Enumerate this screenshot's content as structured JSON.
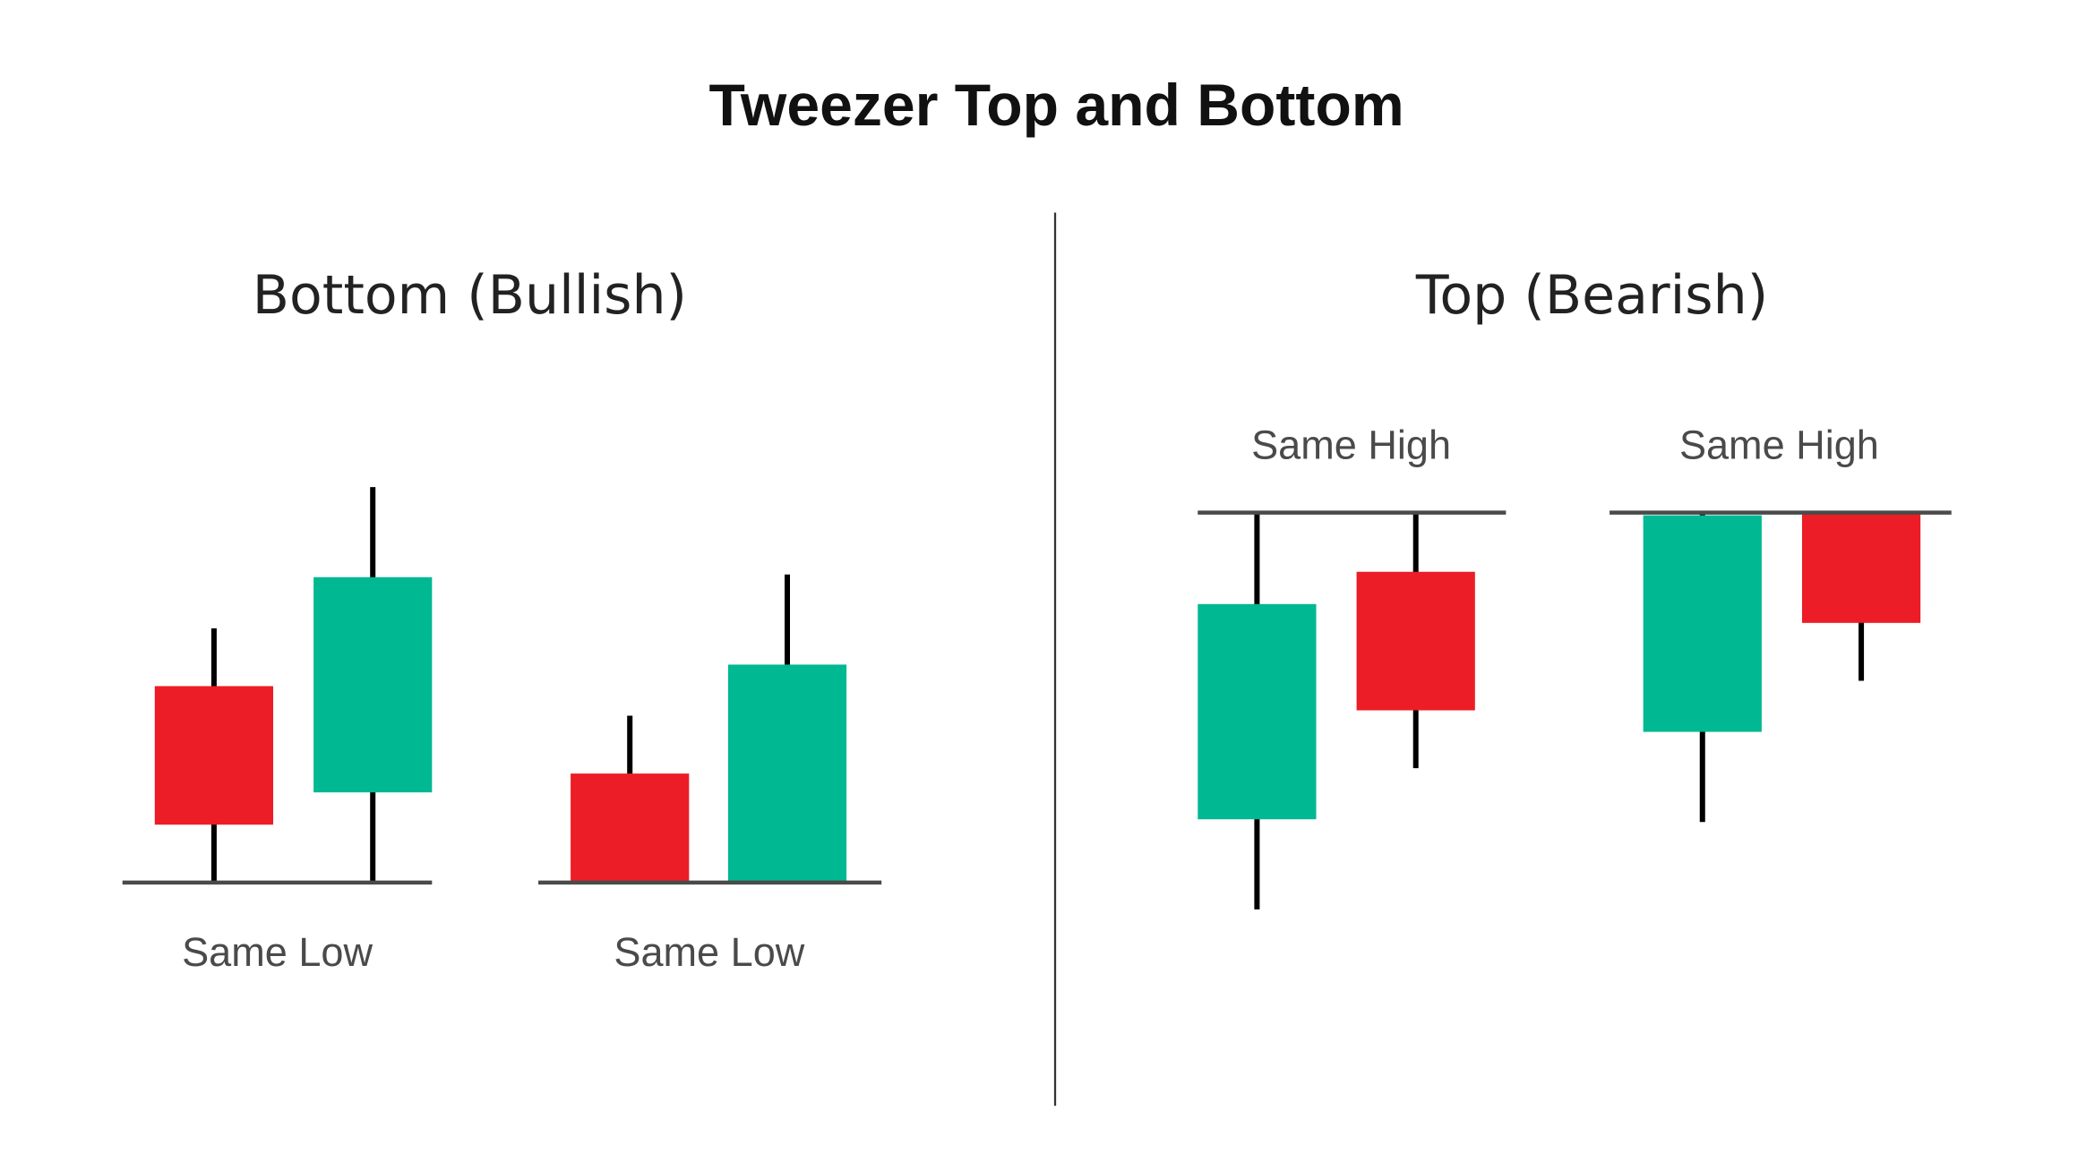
{
  "title": "Tweezer Top and Bottom",
  "colors": {
    "bullish": "#00b891",
    "bearish": "#ec1d26",
    "wick": "#000000",
    "line": "#4a4a4a"
  },
  "chart_data": {
    "type": "candlestick",
    "title": "Tweezer Top and Bottom",
    "panels": [
      {
        "name": "Bottom (Bullish)",
        "groups": [
          {
            "label": "Same Low",
            "reference": "low",
            "level": 0,
            "candles": [
              {
                "open": 14.6,
                "high": 18.9,
                "low": 0,
                "close": 4.3
              },
              {
                "open": 6.7,
                "high": 29.4,
                "low": 0,
                "close": 22.7
              }
            ]
          },
          {
            "label": "Same Low",
            "reference": "low",
            "level": 0,
            "candles": [
              {
                "open": 8.1,
                "high": 12.4,
                "low": 0,
                "close": 0
              },
              {
                "open": 0,
                "high": 22.9,
                "low": 0,
                "close": 16.2
              }
            ]
          }
        ]
      },
      {
        "name": "Top (Bearish)",
        "groups": [
          {
            "label": "Same High",
            "reference": "high",
            "level": 30,
            "candles": [
              {
                "open": 7.2,
                "high": 30,
                "low": 0.5,
                "close": 23.2
              },
              {
                "open": 25.6,
                "high": 30,
                "low": 11,
                "close": 15.3
              }
            ]
          },
          {
            "label": "Same High",
            "reference": "high",
            "level": 30,
            "candles": [
              {
                "open": 13.7,
                "high": 30,
                "low": 7,
                "close": 29.8
              },
              {
                "open": 30,
                "high": 30,
                "low": 17.5,
                "close": 21.8
              }
            ]
          }
        ]
      }
    ]
  }
}
